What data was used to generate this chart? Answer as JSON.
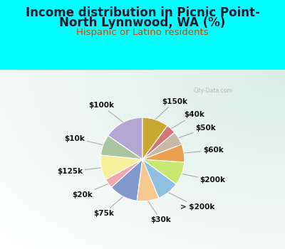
{
  "title_line1": "Income distribution in Picnic Point-",
  "title_line2": "North Lynnwood, WA (%)",
  "subtitle": "Hispanic or Latino residents",
  "bg_color": "#00ffff",
  "chart_bg_color": "#d8ede6",
  "labels": [
    "$100k",
    "$10k",
    "$125k",
    "$20k",
    "$75k",
    "$30k",
    "> $200k",
    "$200k",
    "$60k",
    "$50k",
    "$40k",
    "$150k"
  ],
  "sizes": [
    14.5,
    7.5,
    9.0,
    3.5,
    10.5,
    8.0,
    8.0,
    8.5,
    6.5,
    5.0,
    3.5,
    9.5
  ],
  "colors": [
    "#b3a8d4",
    "#aac6a0",
    "#f5f099",
    "#f0a8b0",
    "#8098cc",
    "#f5c890",
    "#90c0e0",
    "#c8e870",
    "#e8a050",
    "#c8b8a8",
    "#d07878",
    "#c8a830"
  ],
  "wedge_lw": 0.8,
  "wedge_ec": "#ffffff",
  "title_fontsize": 12,
  "subtitle_fontsize": 9.5,
  "label_fontsize": 7.5,
  "startangle": 90
}
